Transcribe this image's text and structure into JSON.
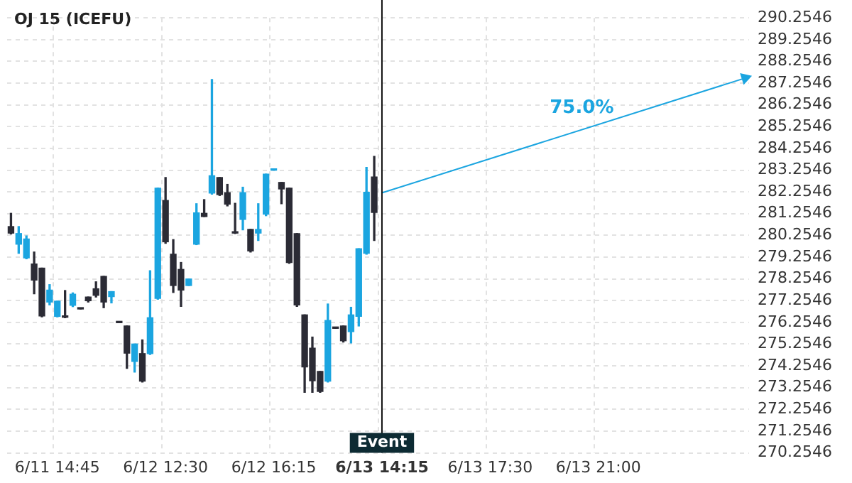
{
  "chart_data": {
    "type": "candlestick",
    "title": "OJ 15 (ICEFU)",
    "categories": [
      null,
      null,
      null,
      null,
      null,
      null,
      "6/11 14:45",
      null,
      null,
      null,
      null,
      null,
      null,
      null,
      null,
      null,
      null,
      null,
      null,
      null,
      "6/12 12:30",
      null,
      null,
      null,
      null,
      null,
      null,
      null,
      null,
      null,
      null,
      null,
      null,
      null,
      "6/12 16:15",
      null,
      null,
      null,
      null,
      null,
      null,
      null,
      null,
      null,
      null,
      null,
      null,
      null,
      "6/13 14:15",
      null,
      null,
      null,
      null,
      null,
      null,
      null,
      null,
      null,
      null,
      null,
      null,
      null,
      "6/13 17:30",
      null,
      null,
      null,
      null,
      null,
      null,
      null,
      null,
      null,
      null,
      null,
      null,
      null,
      "6/13 21:00",
      null,
      null,
      null,
      null,
      null,
      null,
      null,
      null,
      null,
      null,
      null,
      null,
      null,
      null,
      null,
      null,
      null,
      null,
      null
    ],
    "ohlc": [
      [
        280.66,
        281.27,
        280.32,
        280.36
      ],
      [
        279.85,
        280.66,
        279.43,
        280.34
      ],
      [
        279.22,
        280.23,
        279.18,
        280.09
      ],
      [
        278.94,
        279.49,
        277.57,
        278.2
      ],
      [
        278.75,
        278.75,
        276.51,
        276.55
      ],
      [
        277.19,
        277.99,
        277.06,
        277.74
      ],
      [
        276.53,
        277.23,
        276.51,
        277.23
      ],
      [
        276.53,
        277.72,
        276.47,
        276.49
      ],
      [
        277.04,
        277.61,
        276.98,
        277.55
      ],
      [
        276.91,
        276.91,
        276.87,
        276.87
      ],
      [
        277.42,
        277.42,
        277.19,
        277.25
      ],
      [
        277.8,
        278.12,
        277.42,
        277.5
      ],
      [
        278.37,
        278.37,
        276.93,
        277.19
      ],
      [
        277.44,
        277.67,
        277.15,
        277.67
      ],
      [
        276.28,
        276.28,
        276.24,
        276.24
      ],
      [
        276.09,
        276.09,
        274.14,
        274.84
      ],
      [
        274.46,
        275.26,
        273.97,
        275.26
      ],
      [
        274.82,
        275.45,
        273.51,
        273.55
      ],
      [
        274.82,
        278.63,
        274.78,
        276.47
      ],
      [
        277.36,
        282.43,
        277.32,
        282.43
      ],
      [
        281.86,
        282.92,
        279.89,
        279.96
      ],
      [
        279.39,
        280.06,
        277.63,
        277.95
      ],
      [
        278.69,
        279.01,
        276.99,
        277.74
      ],
      [
        277.95,
        278.25,
        277.95,
        278.25
      ],
      [
        279.85,
        281.71,
        279.83,
        281.29
      ],
      [
        281.27,
        281.9,
        281.12,
        281.12
      ],
      [
        282.2,
        287.42,
        282.15,
        283.0
      ],
      [
        282.92,
        282.92,
        282.09,
        282.13
      ],
      [
        282.22,
        282.6,
        281.61,
        281.69
      ],
      [
        280.4,
        281.73,
        280.34,
        280.36
      ],
      [
        280.99,
        282.47,
        280.51,
        282.22
      ],
      [
        280.53,
        280.53,
        279.49,
        279.54
      ],
      [
        280.36,
        281.71,
        280.02,
        280.53
      ],
      [
        281.23,
        283.07,
        281.16,
        283.07
      ],
      [
        283.25,
        283.27,
        283.25,
        283.27
      ],
      [
        282.69,
        282.69,
        281.71,
        282.39
      ],
      [
        282.43,
        282.43,
        278.97,
        279.01
      ],
      [
        280.34,
        280.34,
        276.99,
        277.06
      ],
      [
        276.6,
        276.6,
        273.04,
        274.21
      ],
      [
        275.07,
        275.58,
        273.04,
        273.57
      ],
      [
        274.0,
        274.0,
        273.04,
        273.08
      ],
      [
        273.55,
        277.1,
        273.51,
        276.34
      ],
      [
        276.0,
        276.0,
        275.98,
        275.98
      ],
      [
        276.09,
        276.09,
        275.35,
        275.41
      ],
      [
        275.83,
        276.95,
        275.31,
        276.6
      ],
      [
        276.53,
        279.64,
        276.09,
        279.64
      ],
      [
        279.43,
        283.38,
        279.39,
        282.24
      ],
      [
        282.94,
        283.89,
        280.02,
        281.31
      ],
      null,
      null,
      null,
      null,
      null,
      null,
      null,
      null,
      null,
      null,
      null,
      null,
      null,
      null,
      null,
      null,
      null,
      null,
      null,
      null,
      null,
      null,
      null,
      null,
      null,
      null,
      null,
      null,
      null,
      null,
      null,
      null,
      null,
      null,
      null,
      null,
      null,
      null,
      null,
      null,
      null,
      null,
      null,
      null,
      null,
      null,
      null,
      null
    ],
    "colors": [
      "#2b2b35",
      "#1ba5e0",
      "#1ba5e0",
      "#2b2b35",
      "#2b2b35",
      "#1ba5e0",
      "#1ba5e0",
      "#2b2b35",
      "#1ba5e0",
      "#2b2b35",
      "#2b2b35",
      "#2b2b35",
      "#2b2b35",
      "#1ba5e0",
      "#2b2b35",
      "#2b2b35",
      "#1ba5e0",
      "#2b2b35",
      "#1ba5e0",
      "#1ba5e0",
      "#2b2b35",
      "#2b2b35",
      "#2b2b35",
      "#1ba5e0",
      "#1ba5e0",
      "#2b2b35",
      "#1ba5e0",
      "#2b2b35",
      "#2b2b35",
      "#2b2b35",
      "#1ba5e0",
      "#2b2b35",
      "#1ba5e0",
      "#1ba5e0",
      "#1ba5e0",
      "#2b2b35",
      "#2b2b35",
      "#2b2b35",
      "#2b2b35",
      "#2b2b35",
      "#2b2b35",
      "#1ba5e0",
      "#2b2b35",
      "#2b2b35",
      "#1ba5e0",
      "#1ba5e0",
      "#1ba5e0",
      "#2b2b35",
      null,
      null,
      null,
      null,
      null,
      null,
      null,
      null,
      null,
      null,
      null,
      null,
      null,
      null,
      null,
      null,
      null,
      null,
      null,
      null,
      null,
      null,
      null,
      null,
      null,
      null,
      null,
      null,
      null,
      null,
      null,
      null,
      null,
      null,
      null,
      null,
      null,
      null,
      null,
      null,
      null,
      null,
      null,
      null,
      null,
      null,
      null,
      null
    ],
    "series": [
      {
        "type": "line",
        "color": "#1ba5e0",
        "values": [
          null,
          null,
          null,
          null,
          null,
          null,
          null,
          null,
          null,
          null,
          null,
          null,
          null,
          null,
          null,
          null,
          null,
          null,
          null,
          null,
          null,
          null,
          null,
          null,
          null,
          null,
          null,
          null,
          null,
          null,
          null,
          null,
          null,
          null,
          null,
          null,
          null,
          null,
          null,
          null,
          null,
          null,
          null,
          null,
          null,
          null,
          null,
          null,
          282.21,
          null,
          null,
          null,
          null,
          null,
          null,
          null,
          null,
          null,
          null,
          null,
          null,
          null,
          null,
          null,
          null,
          null,
          null,
          null,
          null,
          null,
          null,
          null,
          null,
          null,
          null,
          null,
          null,
          null,
          null,
          null,
          null,
          null,
          null,
          null,
          null,
          null,
          null,
          null,
          null,
          null,
          null,
          null,
          null,
          null,
          null,
          287.49
        ]
      }
    ],
    "annotations": [
      "75.0%"
    ],
    "ref_lines": [
      {
        "axis": "x",
        "value": "6/13 14:15",
        "label": "Event",
        "color": "#111111"
      }
    ],
    "ylim": [
      270.2546,
      290.2546
    ],
    "yticks": [
      270.2546,
      271.2546,
      272.2546,
      273.2546,
      274.2546,
      275.2546,
      276.2546,
      277.2546,
      278.2546,
      279.2546,
      280.2546,
      281.2546,
      282.2546,
      283.2546,
      284.2546,
      285.2546,
      286.2546,
      287.2546,
      288.2546,
      289.2546,
      290.2546
    ],
    "grid": true,
    "legend": false
  }
}
